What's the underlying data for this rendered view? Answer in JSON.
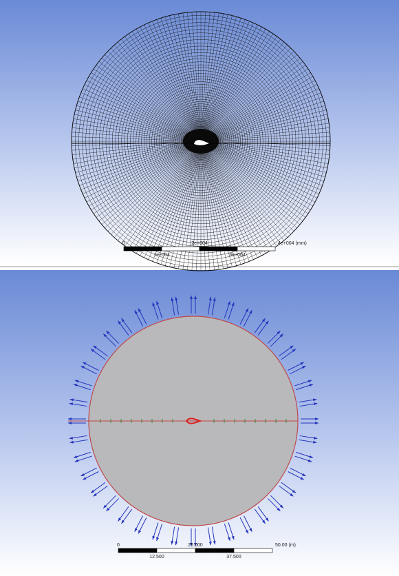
{
  "viewports": [
    {
      "scale_bar": {
        "labels_top": [
          "0",
          "2e+004",
          "4e+004 (mm)"
        ],
        "labels_bottom": [
          "1e+004",
          "3e+004"
        ]
      }
    },
    {
      "scale_bar": {
        "labels_top": [
          "0",
          "25.000",
          "50.00 (m)"
        ],
        "labels_bottom": [
          "12.500",
          "37.500"
        ]
      }
    }
  ]
}
